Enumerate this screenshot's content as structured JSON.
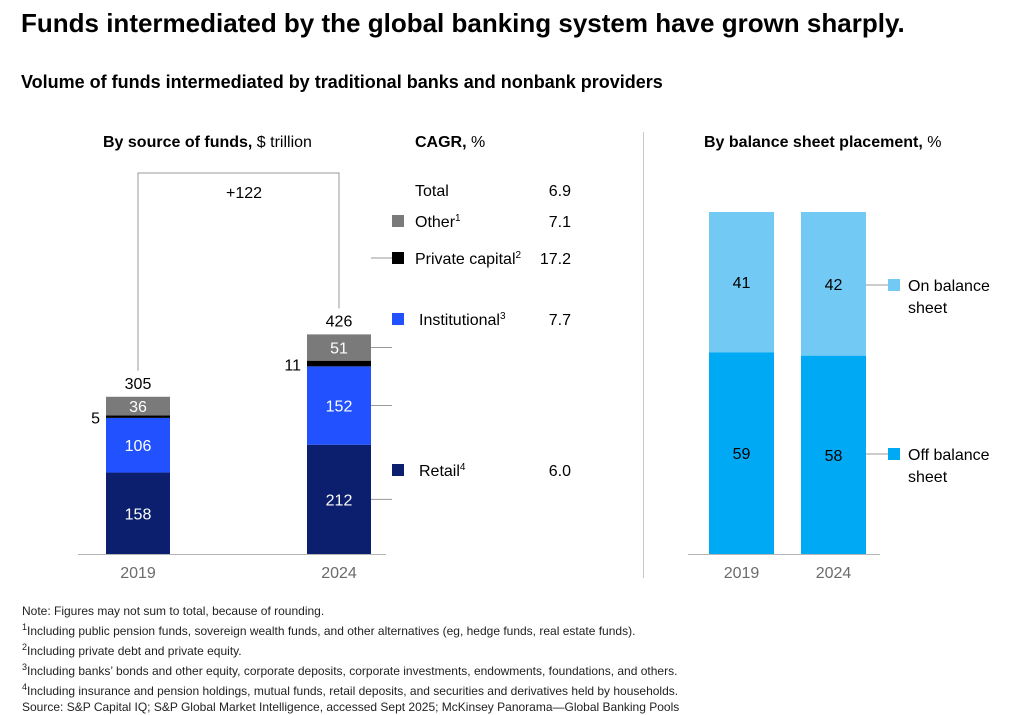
{
  "title": "Funds intermediated by the global banking system have grown sharply.",
  "subtitle": "Volume of funds intermediated by traditional banks and nonbank providers",
  "colors": {
    "retail": "#0b1f6e",
    "institutional": "#2251ff",
    "private_capital": "#000000",
    "other": "#7a7a7a",
    "on_balance": "#72c9f4",
    "off_balance": "#00a9f4"
  },
  "chart_data": [
    {
      "type": "bar",
      "stacked": true,
      "title_bold": "By source of funds,",
      "title_rest": " $ trillion",
      "categories": [
        "2019",
        "2024"
      ],
      "totals": [
        "305",
        "426"
      ],
      "growth_label": "+122",
      "series": [
        {
          "key": "retail",
          "name": "Retail",
          "sup": "4",
          "values": [
            158,
            212
          ],
          "cagr": "6.0"
        },
        {
          "key": "institutional",
          "name": "Institutional",
          "sup": "3",
          "values": [
            106,
            152
          ],
          "cagr": "7.7"
        },
        {
          "key": "private_capital",
          "name": "Private capital",
          "sup": "2",
          "values": [
            5,
            11
          ],
          "cagr": "17.2"
        },
        {
          "key": "other",
          "name": "Other",
          "sup": "1",
          "values": [
            36,
            51
          ],
          "cagr": "7.1"
        }
      ],
      "cagr_header_bold": "CAGR,",
      "cagr_header_rest": " %",
      "cagr_total_label": "Total",
      "cagr_total": "6.9"
    },
    {
      "type": "bar",
      "stacked": true,
      "title_bold": "By balance sheet placement,",
      "title_rest": " %",
      "categories": [
        "2019",
        "2024"
      ],
      "series": [
        {
          "key": "off_balance",
          "name": "Off balance sheet",
          "lines": [
            "Off balance",
            "sheet"
          ],
          "values": [
            59,
            58
          ]
        },
        {
          "key": "on_balance",
          "name": "On balance sheet",
          "lines": [
            "On balance",
            "sheet"
          ],
          "values": [
            41,
            42
          ]
        }
      ]
    }
  ],
  "footnotes": {
    "note": "Note: Figures may not sum to total, because of rounding.",
    "items": [
      {
        "sup": "1",
        "text": "Including public pension funds, sovereign wealth funds, and other alternatives (eg, hedge funds, real estate funds)."
      },
      {
        "sup": "2",
        "text": "Including private debt and private equity."
      },
      {
        "sup": "3",
        "text": "Including banks’ bonds and other equity, corporate deposits, corporate investments, endowments, foundations, and others."
      },
      {
        "sup": "4",
        "text": "Including insurance and pension holdings, mutual funds, retail deposits, and securities and derivatives held by households."
      }
    ],
    "source": "Source: S&P Capital IQ; S&P Global Market Intelligence, accessed Sept 2025; McKinsey Panorama—Global Banking Pools"
  }
}
